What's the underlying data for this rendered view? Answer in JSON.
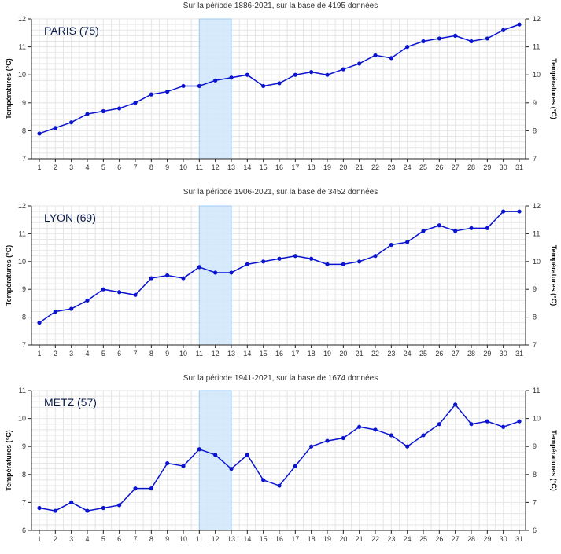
{
  "chart_data": [
    {
      "type": "line",
      "subtitle": "Sur la période 1886-2021, sur la base de 4195 données",
      "city_label": "PARIS (75)",
      "ylabel": "Températures (°C)",
      "ylabel_right": "Températures (°C)",
      "ylim": [
        7,
        12
      ],
      "yticks": [
        7,
        8,
        9,
        10,
        11,
        12
      ],
      "x": [
        1,
        2,
        3,
        4,
        5,
        6,
        7,
        8,
        9,
        10,
        11,
        12,
        13,
        14,
        15,
        16,
        17,
        18,
        19,
        20,
        21,
        22,
        23,
        24,
        25,
        26,
        27,
        28,
        29,
        30,
        31
      ],
      "values": [
        7.9,
        8.1,
        8.3,
        8.6,
        8.7,
        8.8,
        9.0,
        9.3,
        9.4,
        9.6,
        9.6,
        9.8,
        9.9,
        10.0,
        9.6,
        9.7,
        10.0,
        10.1,
        10.0,
        10.2,
        10.4,
        10.7,
        10.6,
        11.0,
        11.2,
        11.3,
        11.4,
        11.2,
        11.3,
        11.6,
        11.8
      ],
      "highlight": [
        11,
        13
      ],
      "grid": true
    },
    {
      "type": "line",
      "subtitle": "Sur la période 1906-2021, sur la base de 3452 données",
      "city_label": "LYON (69)",
      "ylabel": "Températures (°C)",
      "ylabel_right": "Températures (°C)",
      "ylim": [
        7,
        12
      ],
      "yticks": [
        7,
        8,
        9,
        10,
        11,
        12
      ],
      "x": [
        1,
        2,
        3,
        4,
        5,
        6,
        7,
        8,
        9,
        10,
        11,
        12,
        13,
        14,
        15,
        16,
        17,
        18,
        19,
        20,
        21,
        22,
        23,
        24,
        25,
        26,
        27,
        28,
        29,
        30,
        31
      ],
      "values": [
        7.8,
        8.2,
        8.3,
        8.6,
        9.0,
        8.9,
        8.8,
        9.4,
        9.5,
        9.4,
        9.8,
        9.6,
        9.6,
        9.9,
        10.0,
        10.1,
        10.2,
        10.1,
        9.9,
        9.9,
        10.0,
        10.2,
        10.6,
        10.7,
        11.1,
        11.3,
        11.1,
        11.2,
        11.2,
        11.8,
        11.8
      ],
      "highlight": [
        11,
        13
      ],
      "grid": true
    },
    {
      "type": "line",
      "subtitle": "Sur la période 1941-2021, sur la base de 1674 données",
      "city_label": "METZ (57)",
      "ylabel": "Températures (°C)",
      "ylabel_right": "Températures (°C)",
      "ylim": [
        6,
        11
      ],
      "yticks": [
        6,
        7,
        8,
        9,
        10,
        11
      ],
      "x": [
        1,
        2,
        3,
        4,
        5,
        6,
        7,
        8,
        9,
        10,
        11,
        12,
        13,
        14,
        15,
        16,
        17,
        18,
        19,
        20,
        21,
        22,
        23,
        24,
        25,
        26,
        27,
        28,
        29,
        30,
        31
      ],
      "values": [
        6.8,
        6.7,
        7.0,
        6.7,
        6.8,
        6.9,
        7.5,
        7.5,
        8.4,
        8.3,
        8.9,
        8.7,
        8.2,
        8.7,
        7.8,
        7.6,
        8.3,
        9.0,
        9.2,
        9.3,
        9.7,
        9.6,
        9.4,
        9.0,
        9.4,
        9.8,
        10.5,
        9.8,
        9.9,
        9.7,
        9.9
      ],
      "highlight": [
        11,
        13
      ],
      "grid": true
    }
  ],
  "colors": {
    "line": "#0a14d0",
    "highlight": "#cfe6fb",
    "highlight_edge": "#9cc9f0",
    "grid": "#e6e6e6",
    "axis": "#222222"
  }
}
